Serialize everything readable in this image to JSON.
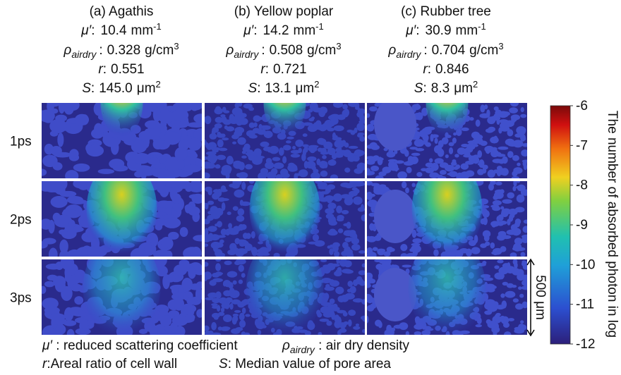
{
  "symbols": {
    "mu": "μ′",
    "mu_unit": "mm",
    "mu_exp": "-1",
    "rho": "ρ",
    "rho_sub": "airdry",
    "rho_unit": "g/cm",
    "rho_exp": "3",
    "r": "r",
    "S": "S",
    "S_unit": "μm",
    "S_exp": "2",
    "sep": ":"
  },
  "columns": [
    {
      "title": "(a) Agathis",
      "mu": "10.4",
      "rho": "0.328",
      "r": "0.551",
      "S": "145.0"
    },
    {
      "title": "(b) Yellow poplar",
      "mu": "14.2",
      "rho": "0.508",
      "r": "0.721",
      "S": "13.1"
    },
    {
      "title": "(c) Rubber tree",
      "mu": "30.9",
      "rho": "0.704",
      "r": "0.846",
      "S": "8.3"
    }
  ],
  "rows": [
    "1ps",
    "2ps",
    "3ps"
  ],
  "colorbar": {
    "label": "The number of absorbed photon in log",
    "lim": [
      -12,
      -6
    ],
    "ticks": [
      -6,
      -7,
      -8,
      -9,
      -10,
      -11,
      -12
    ]
  },
  "scale_bar": "500 μm",
  "legend": [
    {
      "symbol": "μ′",
      "text": " : reduced scattering coefficient"
    },
    {
      "symbol": "ρ",
      "sub": "airdry",
      "text": " : air dry density"
    },
    {
      "symbol": "r",
      "text": ":Areal ratio of cell wall"
    },
    {
      "symbol": "S",
      "text": ": Median value of pore area"
    }
  ]
}
